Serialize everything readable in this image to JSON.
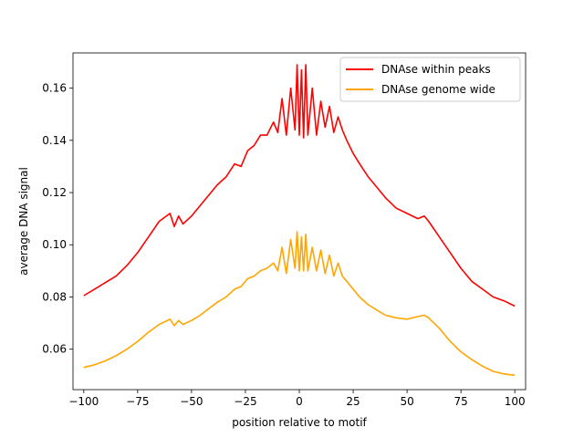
{
  "chart_data": {
    "type": "line",
    "title": "",
    "xlabel": "position relative to motif",
    "ylabel": "average DNA signal",
    "xlim": [
      -105,
      105
    ],
    "ylim": [
      0.0445,
      0.1735
    ],
    "xticks": [
      -100,
      -75,
      -50,
      -25,
      0,
      25,
      50,
      75,
      100
    ],
    "xtick_labels": [
      "−100",
      "−75",
      "−50",
      "−25",
      "0",
      "25",
      "50",
      "75",
      "100"
    ],
    "yticks": [
      0.06,
      0.08,
      0.1,
      0.12,
      0.14,
      0.16
    ],
    "ytick_labels": [
      "0.06",
      "0.08",
      "0.10",
      "0.12",
      "0.14",
      "0.16"
    ],
    "grid": false,
    "legend_position": "top-right",
    "series": [
      {
        "name": "DNAse within peaks",
        "color": "#ff0000",
        "x": [
          -100,
          -95,
          -90,
          -85,
          -80,
          -75,
          -70,
          -65,
          -60,
          -58,
          -56,
          -54,
          -50,
          -46,
          -42,
          -38,
          -34,
          -30,
          -27,
          -24,
          -21,
          -18,
          -15,
          -12,
          -10,
          -8,
          -6,
          -4,
          -2,
          -1,
          0,
          1,
          2,
          3,
          4,
          6,
          8,
          10,
          12,
          14,
          16,
          18,
          20,
          22,
          25,
          28,
          32,
          36,
          40,
          45,
          50,
          55,
          58,
          60,
          65,
          70,
          75,
          80,
          85,
          90,
          95,
          100
        ],
        "y": [
          0.0805,
          0.083,
          0.0855,
          0.088,
          0.092,
          0.097,
          0.103,
          0.109,
          0.112,
          0.107,
          0.111,
          0.108,
          0.111,
          0.115,
          0.119,
          0.123,
          0.126,
          0.131,
          0.13,
          0.136,
          0.138,
          0.142,
          0.142,
          0.147,
          0.143,
          0.156,
          0.142,
          0.16,
          0.144,
          0.169,
          0.142,
          0.167,
          0.141,
          0.169,
          0.142,
          0.16,
          0.142,
          0.155,
          0.145,
          0.153,
          0.143,
          0.149,
          0.144,
          0.14,
          0.135,
          0.131,
          0.126,
          0.122,
          0.118,
          0.114,
          0.112,
          0.11,
          0.111,
          0.109,
          0.103,
          0.097,
          0.091,
          0.086,
          0.083,
          0.08,
          0.0785,
          0.0765
        ]
      },
      {
        "name": "DNAse genome wide",
        "color": "#ffa500",
        "x": [
          -100,
          -95,
          -90,
          -85,
          -80,
          -75,
          -70,
          -65,
          -60,
          -58,
          -56,
          -54,
          -50,
          -46,
          -42,
          -38,
          -34,
          -30,
          -27,
          -24,
          -21,
          -18,
          -15,
          -12,
          -10,
          -8,
          -6,
          -4,
          -2,
          -1,
          0,
          1,
          2,
          3,
          4,
          6,
          8,
          10,
          12,
          14,
          16,
          18,
          20,
          22,
          25,
          28,
          32,
          36,
          40,
          45,
          50,
          55,
          58,
          60,
          65,
          70,
          75,
          80,
          85,
          90,
          95,
          100
        ],
        "y": [
          0.053,
          0.054,
          0.0555,
          0.0575,
          0.06,
          0.063,
          0.0665,
          0.0695,
          0.0715,
          0.069,
          0.071,
          0.0695,
          0.071,
          0.073,
          0.0755,
          0.078,
          0.08,
          0.083,
          0.084,
          0.087,
          0.088,
          0.09,
          0.091,
          0.093,
          0.09,
          0.099,
          0.089,
          0.102,
          0.091,
          0.105,
          0.09,
          0.103,
          0.09,
          0.104,
          0.09,
          0.099,
          0.09,
          0.098,
          0.089,
          0.096,
          0.088,
          0.093,
          0.088,
          0.086,
          0.083,
          0.08,
          0.077,
          0.075,
          0.073,
          0.072,
          0.0715,
          0.0725,
          0.073,
          0.072,
          0.068,
          0.063,
          0.059,
          0.056,
          0.0535,
          0.0515,
          0.0505,
          0.05
        ]
      }
    ]
  }
}
